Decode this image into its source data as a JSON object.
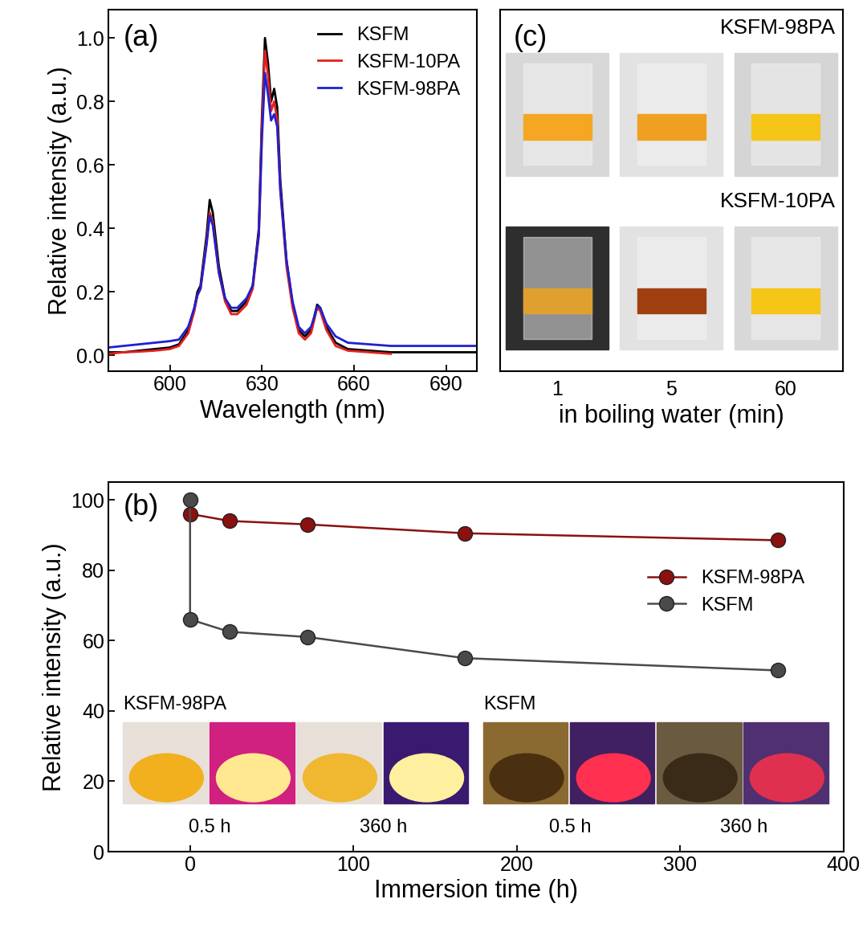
{
  "chart_data": [
    {
      "type": "line",
      "annotations": [
        "(a)"
      ],
      "xlabel": "Wavelength (nm)",
      "ylabel": "Relative intensity (a.u.)",
      "x": [
        580,
        585,
        590,
        595,
        600,
        603,
        606,
        608,
        609,
        610,
        612,
        613,
        614,
        616,
        618,
        620,
        622,
        625,
        627,
        629,
        630,
        631,
        632,
        633,
        634,
        635,
        636,
        638,
        640,
        642,
        644,
        646,
        647,
        648,
        649,
        651,
        654,
        658,
        665,
        672,
        680,
        690,
        700
      ],
      "series": [
        {
          "name": "KSFM",
          "color": "#000000",
          "values": [
            0.01,
            0.01,
            0.015,
            0.02,
            0.025,
            0.035,
            0.08,
            0.15,
            0.2,
            0.22,
            0.38,
            0.49,
            0.45,
            0.28,
            0.18,
            0.14,
            0.14,
            0.17,
            0.22,
            0.4,
            0.75,
            1.0,
            0.92,
            0.8,
            0.84,
            0.78,
            0.55,
            0.3,
            0.16,
            0.08,
            0.06,
            0.08,
            0.12,
            0.16,
            0.15,
            0.09,
            0.04,
            0.02,
            0.015,
            0.01,
            0.01,
            0.01,
            0.01
          ]
        },
        {
          "name": "KSFM-10PA",
          "color": "#e32020",
          "values": [
            0.005,
            0.01,
            0.012,
            0.015,
            0.02,
            0.03,
            0.07,
            0.14,
            0.19,
            0.21,
            0.36,
            0.45,
            0.42,
            0.26,
            0.17,
            0.13,
            0.13,
            0.16,
            0.21,
            0.38,
            0.72,
            0.96,
            0.88,
            0.77,
            0.8,
            0.74,
            0.52,
            0.28,
            0.15,
            0.07,
            0.05,
            0.07,
            0.11,
            0.15,
            0.14,
            0.08,
            0.03,
            0.015,
            0.01,
            0.005,
            null,
            null,
            null
          ]
        },
        {
          "name": "KSFM-98PA",
          "color": "#2020d0",
          "values": [
            0.025,
            0.03,
            0.035,
            0.04,
            0.045,
            0.05,
            0.09,
            0.15,
            0.19,
            0.21,
            0.35,
            0.44,
            0.41,
            0.26,
            0.18,
            0.15,
            0.15,
            0.18,
            0.22,
            0.38,
            0.68,
            0.89,
            0.82,
            0.74,
            0.76,
            0.72,
            0.52,
            0.3,
            0.17,
            0.09,
            0.07,
            0.09,
            0.12,
            0.155,
            0.15,
            0.1,
            0.06,
            0.04,
            0.035,
            0.03,
            0.03,
            0.03,
            0.03
          ]
        }
      ],
      "xlim": [
        580,
        700
      ],
      "xticks": [
        600,
        630,
        660,
        690
      ],
      "ylim": [
        -0.05,
        1.09
      ],
      "yticks": [
        {
          "value": 0,
          "label": "0.0"
        },
        {
          "value": 0.2,
          "label": "0.2"
        },
        {
          "value": 0.4,
          "label": "0.4"
        },
        {
          "value": 0.6,
          "label": "0.6"
        },
        {
          "value": 0.8,
          "label": "0.8"
        },
        {
          "value": 1,
          "label": "1.0"
        }
      ],
      "legend": "upper right"
    },
    {
      "type": "image_panel",
      "annotations": [
        "(c)"
      ],
      "categories": [
        "1",
        "5",
        "60"
      ],
      "xlabel": "in boiling water (min)",
      "labels": [
        "KSFM-98PA",
        "KSFM-10PA"
      ],
      "tick_labels": "x"
    },
    {
      "type": "line",
      "annotations": [
        "(b)"
      ],
      "xlabel": "Immersion time (h)",
      "ylabel": "Relative intensity (a.u.)",
      "series": [
        {
          "name": "KSFM-98PA",
          "color": "#8b1010",
          "marker": "o",
          "x": [
            0,
            24,
            72,
            168,
            360
          ],
          "values": [
            96,
            94,
            93,
            90.5,
            88.5
          ]
        },
        {
          "name": "KSFM",
          "color": "#4a4a4a",
          "marker": "o",
          "x": [
            0,
            0,
            24,
            72,
            168,
            360
          ],
          "values": [
            100,
            66,
            62.5,
            61,
            55,
            51.5
          ]
        }
      ],
      "xlim": [
        -50,
        400
      ],
      "xticks": [
        0,
        100,
        200,
        300,
        400
      ],
      "ylim": [
        0,
        105
      ],
      "yticks": [
        0,
        20,
        40,
        60,
        80,
        100
      ],
      "legend": "upper right",
      "photos": [
        {
          "sample": "KSFM-98PA",
          "times": [
            "0.5 h",
            "360 h"
          ]
        },
        {
          "sample": "KSFM",
          "times": [
            "0.5 h",
            "360 h"
          ]
        }
      ]
    }
  ]
}
